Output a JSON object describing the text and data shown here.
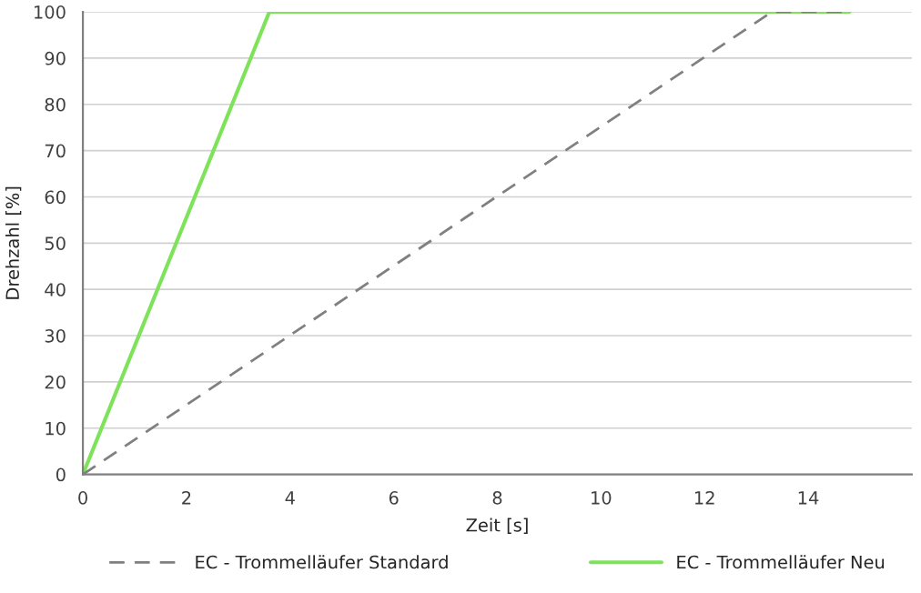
{
  "chart_data": {
    "type": "line",
    "xlabel": "Zeit [s]",
    "ylabel": "Drehzahl [%]",
    "series": [
      {
        "name": "EC - Trommelläufer Standard",
        "color": "#808080",
        "line_style": "dashed",
        "x": [
          0,
          13.3,
          14.8
        ],
        "values": [
          0,
          100,
          100
        ]
      },
      {
        "name": "EC - Trommelläufer Neu",
        "color": "#7ee35a",
        "line_style": "solid",
        "x": [
          0,
          3.6,
          14.8
        ],
        "values": [
          0,
          100,
          100
        ]
      }
    ],
    "xlim": [
      0,
      16
    ],
    "xticks": [
      0,
      2,
      4,
      6,
      8,
      10,
      12,
      14
    ],
    "ylim": [
      0,
      100
    ],
    "yticks": [
      0,
      10,
      20,
      30,
      40,
      50,
      60,
      70,
      80,
      90,
      100
    ],
    "grid": "y",
    "legend": "bottom",
    "marker": "none"
  }
}
